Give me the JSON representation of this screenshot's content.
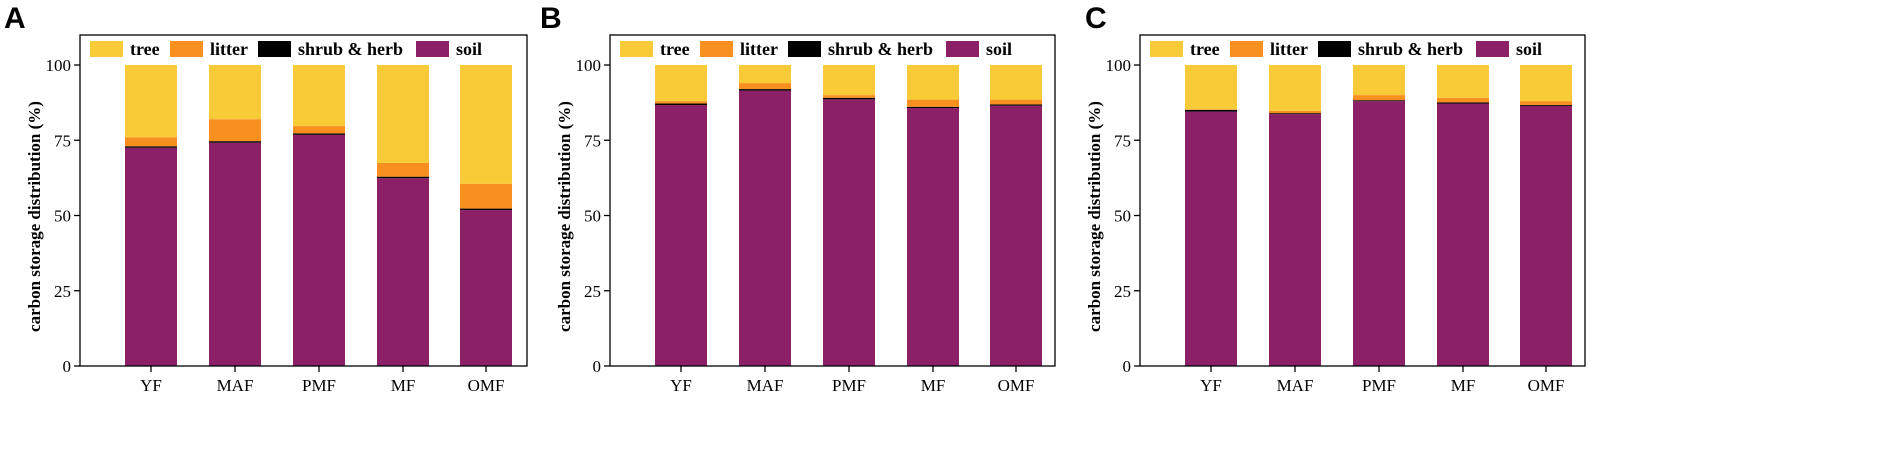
{
  "chart_data": [
    {
      "type": "bar",
      "stacked": true,
      "panel": "A",
      "ylabel": "carbon storage distribution (%)",
      "ylim": [
        0,
        100
      ],
      "yticks": [
        "0",
        "25",
        "50",
        "75",
        "100"
      ],
      "categories": [
        "YF",
        "MAF",
        "PMF",
        "MF",
        "OMF"
      ],
      "legend_position": "top",
      "series": [
        {
          "name": "soil",
          "color": "#8b2066",
          "values": [
            72.5,
            74.2,
            76.8,
            62.4,
            51.8
          ]
        },
        {
          "name": "shrub & herb",
          "color": "#000000",
          "values": [
            0.5,
            0.5,
            0.5,
            0.5,
            0.5
          ]
        },
        {
          "name": "litter",
          "color": "#f7901e",
          "values": [
            3.0,
            7.3,
            2.4,
            4.6,
            8.2
          ]
        },
        {
          "name": "tree",
          "color": "#f8cb37",
          "values": [
            24.0,
            18.0,
            20.3,
            32.5,
            39.5
          ]
        }
      ]
    },
    {
      "type": "bar",
      "stacked": true,
      "panel": "B",
      "ylabel": "carbon storage distribution (%)",
      "ylim": [
        0,
        100
      ],
      "yticks": [
        "0",
        "25",
        "50",
        "75",
        "100"
      ],
      "categories": [
        "YF",
        "MAF",
        "PMF",
        "MF",
        "OMF"
      ],
      "legend_position": "top",
      "series": [
        {
          "name": "soil",
          "color": "#8b2066",
          "values": [
            86.7,
            91.5,
            88.6,
            85.7,
            86.5
          ]
        },
        {
          "name": "shrub & herb",
          "color": "#000000",
          "values": [
            0.5,
            0.5,
            0.5,
            0.4,
            0.4
          ]
        },
        {
          "name": "litter",
          "color": "#f7901e",
          "values": [
            0.8,
            2.0,
            0.9,
            2.4,
            1.6
          ]
        },
        {
          "name": "tree",
          "color": "#f8cb37",
          "values": [
            12.0,
            6.0,
            10.0,
            11.5,
            11.5
          ]
        }
      ]
    },
    {
      "type": "bar",
      "stacked": true,
      "panel": "C",
      "ylabel": "carbon storage distribution (%)",
      "ylim": [
        0,
        100
      ],
      "yticks": [
        "0",
        "25",
        "50",
        "75",
        "100"
      ],
      "categories": [
        "YF",
        "MAF",
        "PMF",
        "MF",
        "OMF"
      ],
      "legend_position": "top",
      "series": [
        {
          "name": "soil",
          "color": "#8b2066",
          "values": [
            84.5,
            83.7,
            88.0,
            87.2,
            86.4
          ]
        },
        {
          "name": "shrub & herb",
          "color": "#000000",
          "values": [
            0.6,
            0.3,
            0.3,
            0.4,
            0.3
          ]
        },
        {
          "name": "litter",
          "color": "#f7901e",
          "values": [
            0.2,
            0.8,
            1.7,
            1.5,
            1.3
          ]
        },
        {
          "name": "tree",
          "color": "#f8cb37",
          "values": [
            14.7,
            15.2,
            10.0,
            10.9,
            12.0
          ]
        }
      ]
    }
  ],
  "legend": [
    {
      "name": "tree",
      "color": "#f8cb37"
    },
    {
      "name": "litter",
      "color": "#f7901e"
    },
    {
      "name": "shrub & herb",
      "color": "#000000"
    },
    {
      "name": "soil",
      "color": "#8b2066"
    }
  ]
}
